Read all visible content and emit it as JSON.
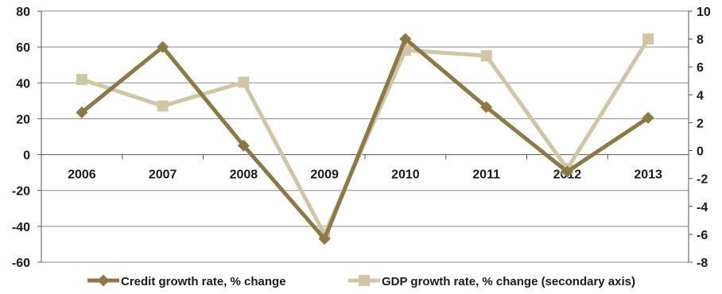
{
  "chart_data": {
    "type": "line",
    "title": "",
    "categories": [
      "2006",
      "2007",
      "2008",
      "2009",
      "2010",
      "2011",
      "2012",
      "2013"
    ],
    "y_left": {
      "min": -60,
      "max": 80,
      "step": 20,
      "ticks": [
        "80",
        "60",
        "40",
        "20",
        "0",
        "-20",
        "-40",
        "-60"
      ]
    },
    "y_right": {
      "min": -8,
      "max": 10,
      "step": 2,
      "ticks": [
        "10",
        "8",
        "6",
        "4",
        "2",
        "0",
        "-2",
        "-4",
        "-6",
        "-8"
      ]
    },
    "series": [
      {
        "name": "Credit growth rate, % change",
        "axis": "left",
        "color": "#8b7a45",
        "marker": "diamond",
        "values": [
          23.5,
          60,
          5,
          -47,
          64.5,
          26.5,
          -9.5,
          20.5
        ]
      },
      {
        "name": "GDP growth rate, % change (secondary axis)",
        "axis": "right",
        "color": "#cfc6a6",
        "marker": "square",
        "values": [
          5.1,
          3.2,
          4.9,
          -6.0,
          7.2,
          6.8,
          -1.3,
          8.0
        ]
      }
    ],
    "gridlines": true,
    "legend_position": "bottom"
  }
}
